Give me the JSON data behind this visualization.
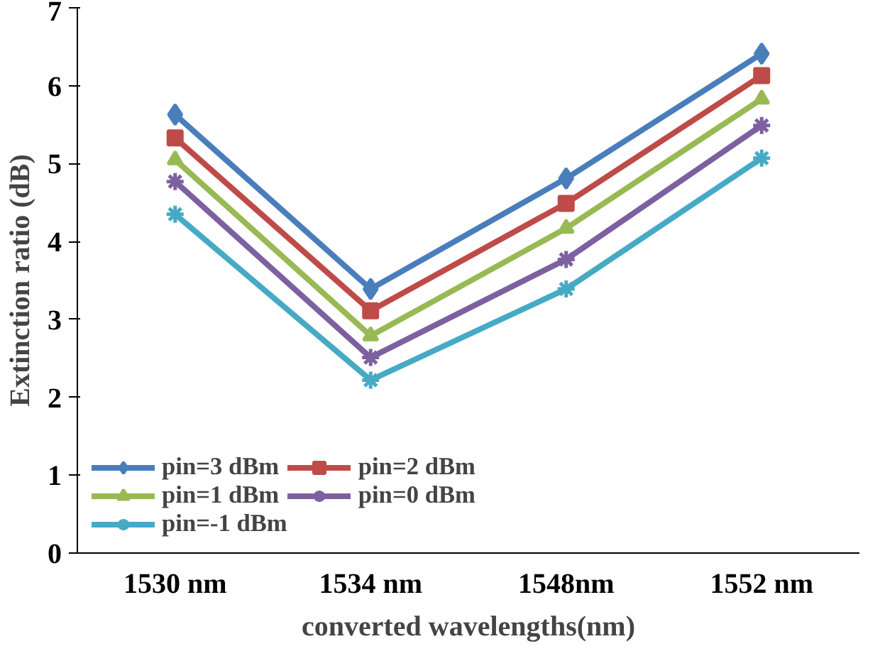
{
  "chart_data": {
    "type": "line",
    "xlabel": "converted wavelengths(nm)",
    "ylabel": "Extinction ratio (dB)",
    "categories": [
      "1530 nm",
      "1534 nm",
      "1548nm",
      "1552 nm"
    ],
    "ylim": [
      0,
      7
    ],
    "yticks": [
      0,
      1,
      2,
      3,
      4,
      5,
      6,
      7
    ],
    "grid": false,
    "legend": "bottom left",
    "line_style": "solid",
    "series": [
      {
        "name": "pin=3 dBm",
        "color": "#4a7ebb",
        "marker": "diamond",
        "values": [
          5.63,
          3.39,
          4.81,
          6.41
        ]
      },
      {
        "name": "pin=2 dBm",
        "color": "#be4b48",
        "marker": "square",
        "values": [
          5.33,
          3.11,
          4.49,
          6.13
        ]
      },
      {
        "name": "pin=1 dBm",
        "color": "#98b954",
        "marker": "triangle",
        "values": [
          5.05,
          2.79,
          4.17,
          5.83
        ]
      },
      {
        "name": "pin=0 dBm",
        "color": "#7d60a0",
        "marker": "cross",
        "values": [
          4.77,
          2.51,
          3.77,
          5.49
        ]
      },
      {
        "name": "pin=-1 dBm",
        "color": "#46aac5",
        "marker": "cross",
        "values": [
          4.35,
          2.22,
          3.39,
          5.07
        ]
      }
    ]
  }
}
